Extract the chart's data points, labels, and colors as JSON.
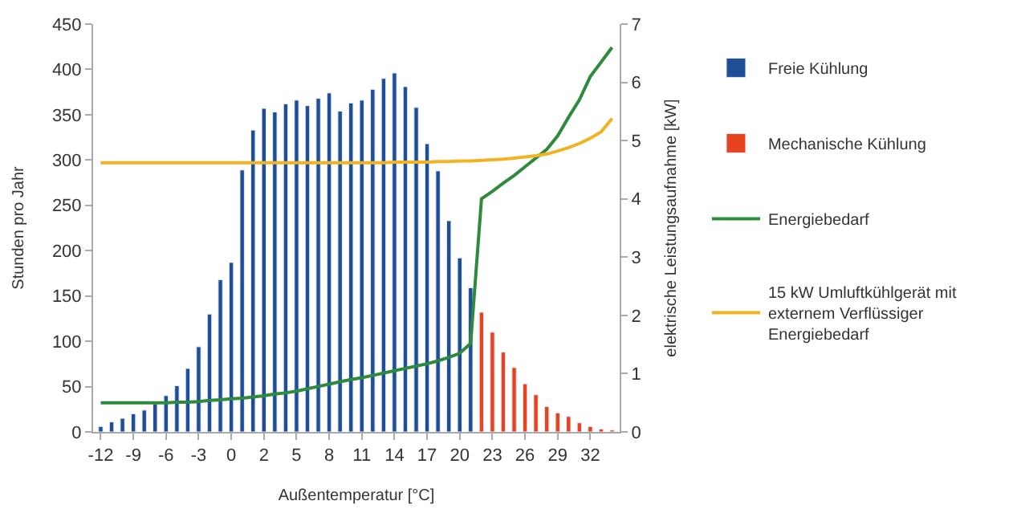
{
  "chart_data": {
    "type": "bar",
    "xlabel": "Außentemperatur [°C]",
    "ylabel": "Stunden pro Jahr",
    "y2label": "elektrische Leistungsaufnahme [kW]",
    "categories": [
      "-12",
      null,
      null,
      "-9",
      null,
      null,
      "-6",
      null,
      null,
      "-3",
      null,
      null,
      "0",
      null,
      null,
      "2",
      null,
      null,
      "5",
      null,
      null,
      "8",
      null,
      null,
      "11",
      null,
      null,
      "14",
      null,
      null,
      "17",
      null,
      null,
      "20",
      null,
      null,
      "23",
      null,
      null,
      "26",
      null,
      null,
      "29",
      null,
      null,
      "32",
      null,
      null
    ],
    "series": [
      {
        "name": "Freie Kühlung",
        "color": "#1f4e96",
        "values": [
          6,
          11,
          15,
          20,
          24,
          31,
          40,
          51,
          70,
          94,
          130,
          168,
          187,
          289,
          333,
          357,
          353,
          362,
          366,
          360,
          368,
          374,
          354,
          363,
          366,
          378,
          390,
          396,
          381,
          358,
          318,
          288,
          233,
          192,
          159,
          null,
          null,
          null,
          null,
          null,
          null,
          null,
          null,
          null,
          null,
          null,
          null,
          null
        ]
      },
      {
        "name": "Mechanische Kühlung",
        "color": "#e8431f",
        "values": [
          null,
          null,
          null,
          null,
          null,
          null,
          null,
          null,
          null,
          null,
          null,
          null,
          null,
          null,
          null,
          null,
          null,
          null,
          null,
          null,
          null,
          null,
          null,
          null,
          null,
          null,
          null,
          null,
          null,
          null,
          null,
          null,
          null,
          null,
          null,
          132,
          110,
          88,
          71,
          53,
          41,
          28,
          21,
          17,
          10,
          6,
          3,
          2
        ]
      },
      {
        "name": "Energiebedarf",
        "type": "line",
        "axis": "y2",
        "color": "#2e8b3e",
        "values": [
          0.5,
          0.5,
          0.5,
          0.5,
          0.5,
          0.5,
          0.5,
          0.51,
          0.51,
          0.52,
          0.54,
          0.55,
          0.57,
          0.58,
          0.6,
          0.62,
          0.65,
          0.67,
          0.7,
          0.74,
          0.78,
          0.82,
          0.86,
          0.9,
          0.93,
          0.97,
          1.01,
          1.05,
          1.09,
          1.13,
          1.17,
          1.22,
          1.28,
          1.35,
          1.52,
          4.0,
          4.13,
          4.27,
          4.4,
          4.55,
          4.7,
          4.85,
          5.08,
          5.4,
          5.7,
          6.1,
          6.35,
          6.6
        ]
      },
      {
        "name": "15 kW Umluftkühlgerät mit externem Verflüssiger Energiebedarf",
        "type": "line",
        "axis": "y2",
        "color": "#f0b323",
        "values": [
          4.62,
          4.62,
          4.62,
          4.62,
          4.62,
          4.62,
          4.62,
          4.62,
          4.62,
          4.62,
          4.62,
          4.62,
          4.62,
          4.62,
          4.62,
          4.62,
          4.62,
          4.62,
          4.62,
          4.62,
          4.62,
          4.62,
          4.62,
          4.62,
          4.62,
          4.62,
          4.62,
          4.63,
          4.63,
          4.63,
          4.63,
          4.64,
          4.64,
          4.65,
          4.65,
          4.66,
          4.67,
          4.68,
          4.7,
          4.72,
          4.74,
          4.77,
          4.82,
          4.88,
          4.95,
          5.04,
          5.15,
          5.38
        ]
      }
    ],
    "ylim": [
      0,
      450
    ],
    "yticks": [
      0,
      50,
      100,
      150,
      200,
      250,
      300,
      350,
      400,
      450
    ],
    "y2lim": [
      0,
      7
    ],
    "y2ticks": [
      0,
      1,
      2,
      3,
      4,
      5,
      6,
      7
    ],
    "grid": false,
    "legend": "right",
    "marker": "none",
    "line_style": "solid"
  }
}
